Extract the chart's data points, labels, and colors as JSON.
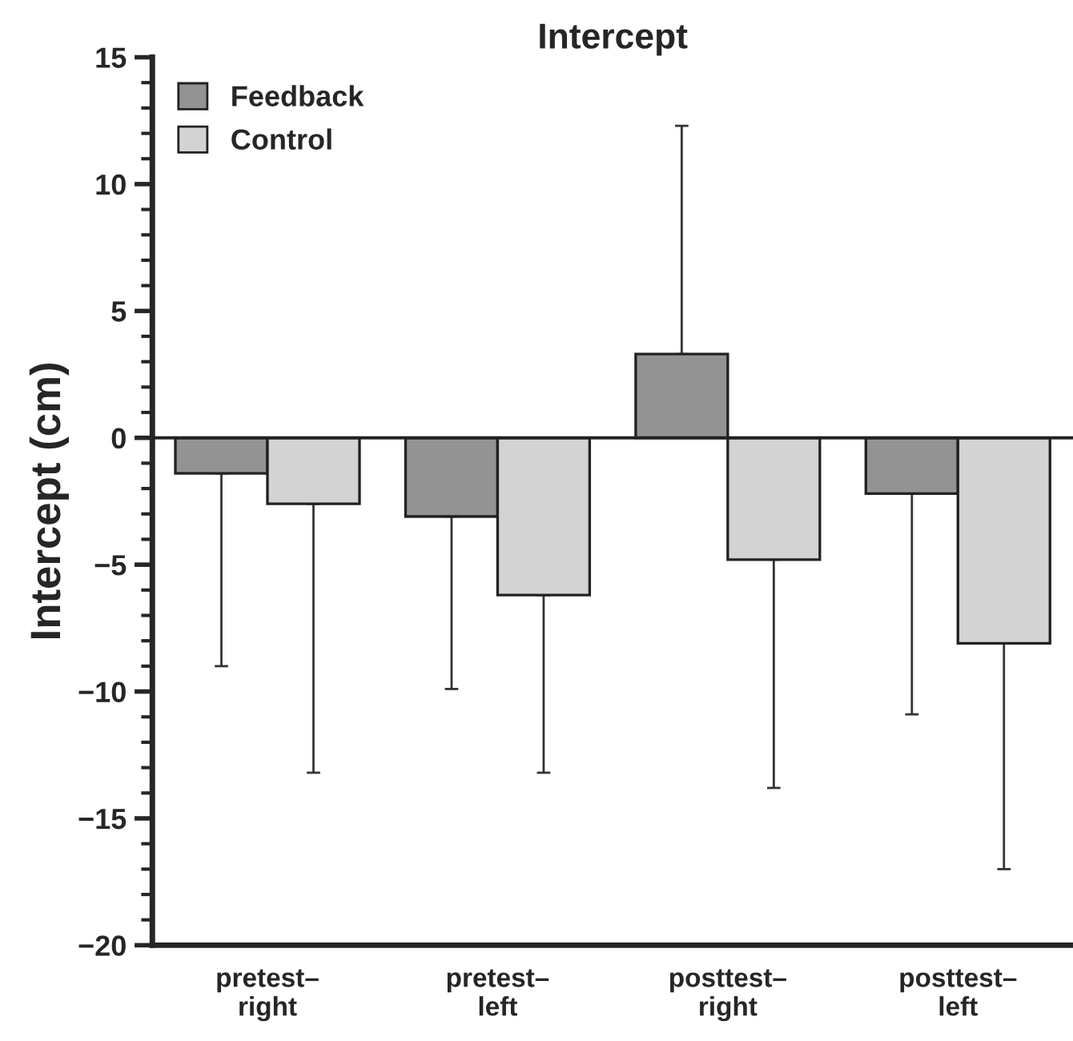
{
  "chart_data": {
    "type": "bar",
    "title": "Intercept",
    "ylabel": "Intercept (cm)",
    "categories": [
      "pretest–\nright",
      "pretest–\nleft",
      "posttest–\nright",
      "posttest–\nleft"
    ],
    "series": [
      {
        "name": "Feedback",
        "color": "#939393",
        "values": [
          -1.4,
          -3.1,
          3.3,
          -2.2
        ],
        "errors": [
          [
            -9.0,
            -1.4
          ],
          [
            -9.9,
            -3.1
          ],
          [
            3.3,
            12.3
          ],
          [
            -10.9,
            -2.2
          ]
        ]
      },
      {
        "name": "Control",
        "color": "#d3d3d3",
        "values": [
          -2.6,
          -6.2,
          -4.8,
          -8.1
        ],
        "errors": [
          [
            -13.2,
            -2.6
          ],
          [
            -13.2,
            -6.2
          ],
          [
            -13.8,
            -4.8
          ],
          [
            -17.0,
            -8.1
          ]
        ]
      }
    ],
    "ylim": [
      -20,
      15
    ],
    "yticks": [
      {
        "value": -20,
        "label": "−20"
      },
      {
        "value": -15,
        "label": "−15"
      },
      {
        "value": -10,
        "label": "−10"
      },
      {
        "value": -5,
        "label": "−5"
      },
      0,
      5,
      10,
      15
    ],
    "ref_lines": [
      {
        "axis": "y",
        "value": 0,
        "color": "#222222"
      }
    ],
    "grid": false,
    "legend": "top left"
  }
}
